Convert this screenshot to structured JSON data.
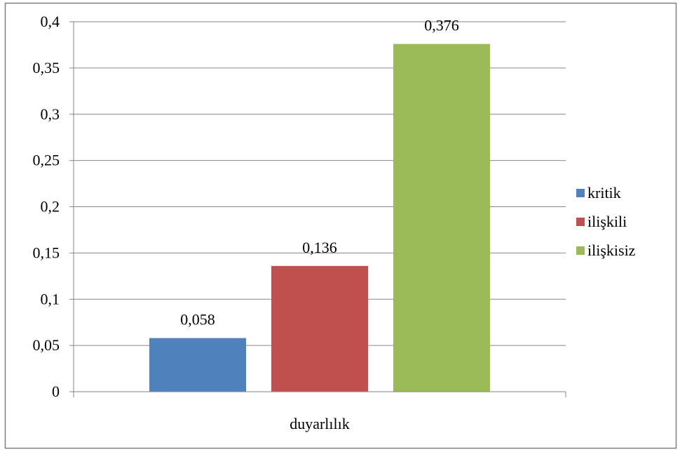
{
  "chart_data": {
    "type": "bar",
    "categories": [
      "duyarlılık"
    ],
    "series": [
      {
        "name": "kritik",
        "values": [
          0.058
        ],
        "label": "0,058",
        "color": "#4F81BD"
      },
      {
        "name": "ilişkili",
        "values": [
          0.136
        ],
        "label": "0,136",
        "color": "#C0504D"
      },
      {
        "name": "ilişkisiz",
        "values": [
          0.376
        ],
        "label": "0,376",
        "color": "#9BBB59"
      }
    ],
    "ylim": [
      0,
      0.4
    ],
    "yticks": [
      {
        "value": 0,
        "label": "0"
      },
      {
        "value": 0.05,
        "label": "0,05"
      },
      {
        "value": 0.1,
        "label": "0,1"
      },
      {
        "value": 0.15,
        "label": "0,15"
      },
      {
        "value": 0.2,
        "label": "0,2"
      },
      {
        "value": 0.25,
        "label": "0,25"
      },
      {
        "value": 0.3,
        "label": "0,3"
      },
      {
        "value": 0.35,
        "label": "0,35"
      },
      {
        "value": 0.4,
        "label": "0,4"
      }
    ],
    "grid": true,
    "legend": "right",
    "title": "",
    "xlabel": "",
    "ylabel": ""
  }
}
